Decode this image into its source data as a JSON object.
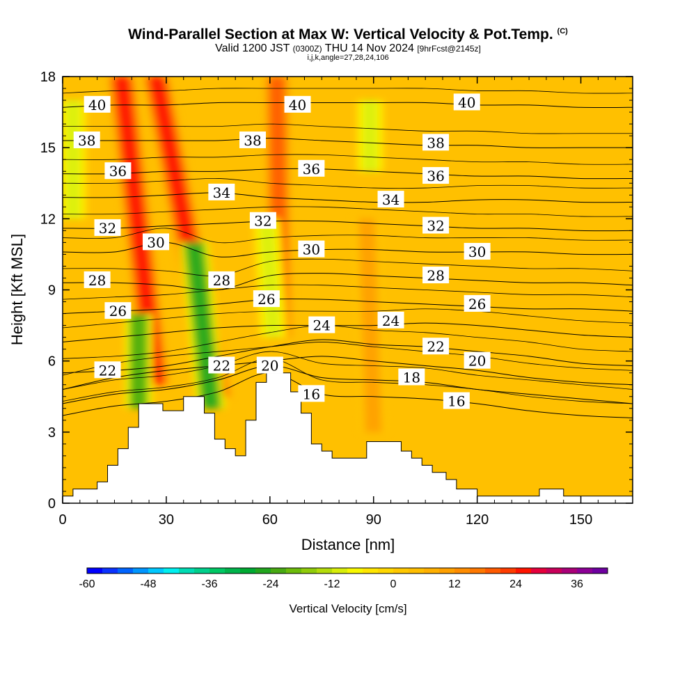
{
  "header": {
    "title": "Wind-Parallel Section at Max W: Vertical Velocity & Pot.Temp.",
    "copyright": "(C)",
    "valid_prefix": "Valid 1200 JST",
    "valid_utc": "(0300Z)",
    "valid_date": "THU 14 Nov 2024",
    "forecast": "[9hrFcst@2145z]",
    "indices": "i,j,k,angle=27,28,24,106"
  },
  "chart_data": {
    "type": "heatmap",
    "xlabel": "Distance [nm]",
    "ylabel": "Height [Kft MSL]",
    "xlim": [
      0,
      165
    ],
    "ylim": [
      0,
      18
    ],
    "x_ticks": [
      0,
      30,
      60,
      90,
      120,
      150
    ],
    "y_ticks": [
      0,
      3,
      6,
      9,
      12,
      15,
      18
    ],
    "colorbar": {
      "title": "Vertical Velocity [cm/s]",
      "ticks": [
        -60,
        -48,
        -36,
        -24,
        -12,
        0,
        12,
        24,
        36
      ],
      "levels": [
        -60,
        -57,
        -54,
        -51,
        -48,
        -45,
        -42,
        -39,
        -36,
        -33,
        -30,
        -27,
        -24,
        -21,
        -18,
        -15,
        -12,
        -9,
        -6,
        -3,
        0,
        3,
        6,
        9,
        12,
        15,
        18,
        21,
        24,
        27,
        30,
        33,
        36,
        39
      ],
      "colors": [
        "#0000ff",
        "#0a32ff",
        "#0064ff",
        "#0096ff",
        "#00c8ff",
        "#00f0f0",
        "#00dcb4",
        "#00d08c",
        "#00c864",
        "#00b44b",
        "#00aa32",
        "#22a61e",
        "#48aa12",
        "#6cbc0a",
        "#90cc0a",
        "#b4dc0a",
        "#d8ee0a",
        "#f8f800",
        "#ffe600",
        "#ffd700",
        "#ffc800",
        "#ffbe00",
        "#ffb000",
        "#ffa000",
        "#ff8c00",
        "#ff7800",
        "#ff5a00",
        "#ff3c00",
        "#ff1400",
        "#e6003c",
        "#c8005a",
        "#aa0078",
        "#8c0096",
        "#6e00a0"
      ]
    },
    "terrain_profile_nm_kft": [
      [
        0,
        0.3
      ],
      [
        3,
        0.3
      ],
      [
        3,
        0.6
      ],
      [
        10,
        0.6
      ],
      [
        10,
        0.9
      ],
      [
        13,
        0.9
      ],
      [
        13,
        1.6
      ],
      [
        16,
        1.6
      ],
      [
        16,
        2.3
      ],
      [
        19,
        2.3
      ],
      [
        19,
        3.2
      ],
      [
        22,
        3.2
      ],
      [
        22,
        4.2
      ],
      [
        29,
        4.2
      ],
      [
        29,
        3.9
      ],
      [
        35,
        3.9
      ],
      [
        35,
        4.5
      ],
      [
        41,
        4.5
      ],
      [
        41,
        3.8
      ],
      [
        44,
        3.8
      ],
      [
        44,
        2.7
      ],
      [
        47,
        2.7
      ],
      [
        47,
        2.3
      ],
      [
        50,
        2.3
      ],
      [
        50,
        2.0
      ],
      [
        53,
        2.0
      ],
      [
        53,
        3.5
      ],
      [
        56,
        3.5
      ],
      [
        56,
        5.1
      ],
      [
        59,
        5.1
      ],
      [
        59,
        5.5
      ],
      [
        66,
        5.5
      ],
      [
        66,
        4.7
      ],
      [
        69,
        4.7
      ],
      [
        69,
        3.8
      ],
      [
        72,
        3.8
      ],
      [
        72,
        2.5
      ],
      [
        75,
        2.5
      ],
      [
        75,
        2.2
      ],
      [
        78,
        2.2
      ],
      [
        78,
        1.9
      ],
      [
        88,
        1.9
      ],
      [
        88,
        2.6
      ],
      [
        98,
        2.6
      ],
      [
        98,
        2.2
      ],
      [
        101,
        2.2
      ],
      [
        101,
        1.9
      ],
      [
        104,
        1.9
      ],
      [
        104,
        1.6
      ],
      [
        107,
        1.6
      ],
      [
        107,
        1.3
      ],
      [
        111,
        1.3
      ],
      [
        111,
        1.0
      ],
      [
        114,
        1.0
      ],
      [
        114,
        0.6
      ],
      [
        120,
        0.6
      ],
      [
        120,
        0.3
      ],
      [
        138,
        0.3
      ],
      [
        138,
        0.6
      ],
      [
        145,
        0.6
      ],
      [
        145,
        0.3
      ],
      [
        165,
        0.3
      ]
    ],
    "updraft_bands_nm_kft": [
      {
        "label": "updraft-1",
        "x_bottom": 27,
        "x_top": 17,
        "y_bottom": 5,
        "y_top": 18,
        "w": 24
      },
      {
        "label": "updraft-2",
        "x_bottom": 45,
        "x_top": 27,
        "y_bottom": 4.5,
        "y_top": 18,
        "w": 24
      },
      {
        "label": "updraft-3",
        "x_bottom": 63,
        "x_top": 62,
        "y_bottom": 7,
        "y_top": 18,
        "w": 18
      },
      {
        "label": "updraft-4",
        "x_bottom": 90,
        "x_top": 88,
        "y_bottom": 3,
        "y_top": 12,
        "w": 9
      }
    ],
    "downdraft_bands_nm_kft": [
      {
        "label": "downdraft-1",
        "x_bottom": 22,
        "x_top": 22,
        "y_bottom": 4,
        "y_top": 8,
        "w": -24
      },
      {
        "label": "downdraft-2",
        "x_bottom": 43,
        "x_top": 38,
        "y_bottom": 4,
        "y_top": 11,
        "w": -27
      },
      {
        "label": "downdraft-3",
        "x_bottom": 61,
        "x_top": 59,
        "y_bottom": 7,
        "y_top": 12,
        "w": -12
      },
      {
        "label": "downdraft-4",
        "x_bottom": 3,
        "x_top": 3,
        "y_bottom": 12,
        "y_top": 17,
        "w": -12
      },
      {
        "label": "downdraft-5",
        "x_bottom": 89,
        "x_top": 89,
        "y_bottom": 14,
        "y_top": 17,
        "w": -12
      }
    ],
    "theta_contours": [
      {
        "label": "16",
        "ys": [
          3.7,
          4.1,
          4.3,
          4.7,
          5.5,
          4.6,
          4.5,
          4.4,
          4.2,
          3.9,
          3.7,
          3.6
        ]
      },
      {
        "label": "18",
        "ys": [
          4.2,
          4.6,
          4.8,
          5.2,
          5.8,
          5.3,
          5.2,
          5.1,
          4.8,
          4.6,
          4.4,
          4.2
        ]
      },
      {
        "label": "20",
        "ys": [
          4.8,
          5.3,
          5.6,
          5.8,
          6.0,
          6.2,
          6.0,
          5.8,
          5.6,
          5.3,
          5.1,
          5.0
        ]
      },
      {
        "label": "22",
        "ys": [
          5.5,
          5.6,
          5.8,
          6.2,
          6.6,
          6.9,
          6.7,
          6.6,
          6.4,
          6.2,
          5.9,
          5.8
        ]
      },
      {
        "label": "24",
        "ys": [
          6.8,
          7.0,
          7.2,
          7.4,
          7.5,
          7.5,
          7.5,
          7.6,
          7.5,
          7.3,
          7.1,
          7.0
        ]
      },
      {
        "label": "26",
        "ys": [
          8.0,
          8.1,
          8.2,
          8.4,
          8.6,
          8.6,
          8.5,
          8.4,
          8.3,
          8.2,
          8.2,
          8.1
        ]
      },
      {
        "label": "28",
        "ys": [
          9.3,
          9.3,
          9.2,
          9.0,
          9.6,
          9.7,
          9.6,
          9.5,
          9.4,
          9.3,
          9.3,
          9.2
        ]
      },
      {
        "label": "30",
        "ys": [
          10.6,
          10.6,
          11.0,
          10.4,
          10.6,
          10.7,
          10.7,
          10.6,
          10.6,
          10.6,
          10.5,
          10.5
        ]
      },
      {
        "label": "32",
        "ys": [
          11.6,
          11.6,
          11.7,
          11.8,
          11.9,
          11.9,
          11.8,
          11.7,
          11.6,
          11.6,
          11.5,
          11.5
        ]
      },
      {
        "label": "34",
        "ys": [
          12.9,
          12.9,
          13.0,
          13.1,
          12.9,
          12.8,
          12.7,
          12.7,
          12.8,
          12.8,
          12.7,
          12.7
        ]
      },
      {
        "label": "36",
        "ys": [
          13.9,
          13.9,
          14.0,
          14.0,
          14.1,
          14.1,
          14.0,
          13.9,
          13.8,
          13.8,
          13.7,
          13.7
        ]
      },
      {
        "label": "38",
        "ys": [
          15.3,
          15.3,
          15.3,
          15.3,
          15.4,
          15.3,
          15.2,
          15.1,
          15.1,
          15.0,
          15.0,
          15.0
        ]
      },
      {
        "label": "40",
        "ys": [
          16.7,
          16.8,
          16.8,
          16.9,
          16.9,
          16.9,
          16.9,
          16.9,
          16.8,
          16.8,
          16.7,
          16.7
        ]
      }
    ],
    "theta_x_nodes_nm": [
      0,
      15,
      30,
      45,
      60,
      75,
      90,
      105,
      120,
      135,
      150,
      165
    ],
    "theta_label_positions_nm_kft": [
      {
        "label": "40",
        "x": 10,
        "y": 16.8
      },
      {
        "label": "40",
        "x": 68,
        "y": 16.8
      },
      {
        "label": "40",
        "x": 117,
        "y": 16.9
      },
      {
        "label": "38",
        "x": 7,
        "y": 15.3
      },
      {
        "label": "38",
        "x": 55,
        "y": 15.3
      },
      {
        "label": "38",
        "x": 108,
        "y": 15.2
      },
      {
        "label": "36",
        "x": 16,
        "y": 14.0
      },
      {
        "label": "36",
        "x": 72,
        "y": 14.1
      },
      {
        "label": "36",
        "x": 108,
        "y": 13.8
      },
      {
        "label": "34",
        "x": 46,
        "y": 13.1
      },
      {
        "label": "34",
        "x": 95,
        "y": 12.8
      },
      {
        "label": "32",
        "x": 13,
        "y": 11.6
      },
      {
        "label": "32",
        "x": 58,
        "y": 11.9
      },
      {
        "label": "32",
        "x": 108,
        "y": 11.7
      },
      {
        "label": "30",
        "x": 27,
        "y": 11.0
      },
      {
        "label": "30",
        "x": 72,
        "y": 10.7
      },
      {
        "label": "30",
        "x": 120,
        "y": 10.6
      },
      {
        "label": "28",
        "x": 10,
        "y": 9.4
      },
      {
        "label": "28",
        "x": 46,
        "y": 9.4
      },
      {
        "label": "28",
        "x": 108,
        "y": 9.6
      },
      {
        "label": "26",
        "x": 16,
        "y": 8.1
      },
      {
        "label": "26",
        "x": 59,
        "y": 8.6
      },
      {
        "label": "26",
        "x": 120,
        "y": 8.4
      },
      {
        "label": "24",
        "x": 75,
        "y": 7.5
      },
      {
        "label": "24",
        "x": 95,
        "y": 7.7
      },
      {
        "label": "22",
        "x": 13,
        "y": 5.6
      },
      {
        "label": "22",
        "x": 46,
        "y": 5.8
      },
      {
        "label": "22",
        "x": 108,
        "y": 6.6
      },
      {
        "label": "20",
        "x": 60,
        "y": 5.8
      },
      {
        "label": "20",
        "x": 120,
        "y": 6.0
      },
      {
        "label": "18",
        "x": 101,
        "y": 5.3
      },
      {
        "label": "16",
        "x": 72,
        "y": 4.6
      },
      {
        "label": "16",
        "x": 114,
        "y": 4.3
      }
    ]
  }
}
